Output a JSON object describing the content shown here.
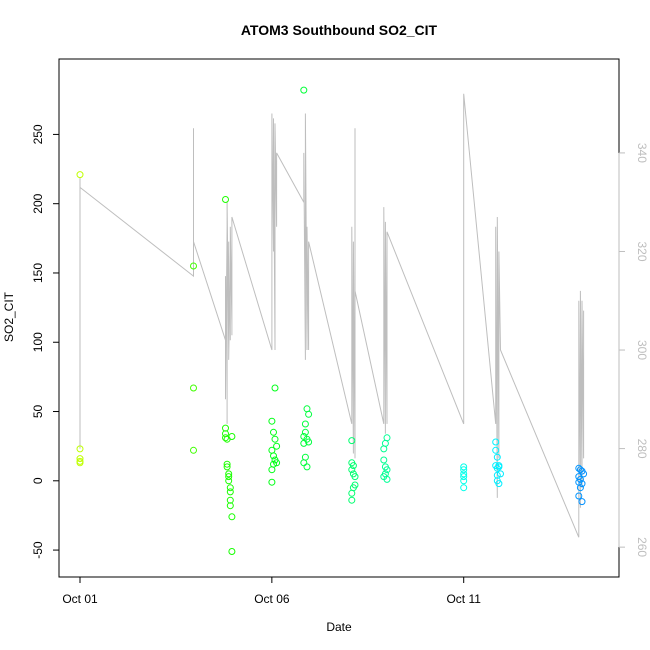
{
  "chart_data": {
    "type": "scatter",
    "title": "ATOM3 Southbound SO2_CIT",
    "xlabel": "Date",
    "ylabel": "SO2_CIT",
    "x_ticks": [
      "Oct 01",
      "Oct 06",
      "Oct 11"
    ],
    "xlim": [
      "2016-10-01T00:00",
      "2016-10-14T12:00"
    ],
    "ylim": [
      -55,
      290
    ],
    "y_ticks": [
      -50,
      0,
      50,
      100,
      150,
      200,
      250
    ],
    "y2lim": [
      258,
      355
    ],
    "y2_ticks": [
      260,
      280,
      300,
      320,
      340
    ],
    "grid": false,
    "series": [
      {
        "kind": "points",
        "color_scale": "rainbow-by-time",
        "points": [
          [
            "2016-10-01T00:00",
            221
          ],
          [
            "2016-10-01T00:00",
            23
          ],
          [
            "2016-10-01T00:00",
            16
          ],
          [
            "2016-10-01T00:00",
            14
          ],
          [
            "2016-10-01T00:00",
            13
          ],
          [
            "2016-10-03T23:00",
            155
          ],
          [
            "2016-10-03T23:00",
            67
          ],
          [
            "2016-10-03T23:00",
            22
          ],
          [
            "2016-10-04T19:00",
            203
          ],
          [
            "2016-10-04T19:00",
            38
          ],
          [
            "2016-10-04T19:00",
            34
          ],
          [
            "2016-10-04T19:00",
            31
          ],
          [
            "2016-10-04T20:00",
            30
          ],
          [
            "2016-10-04T20:00",
            12
          ],
          [
            "2016-10-04T20:00",
            10
          ],
          [
            "2016-10-04T21:00",
            5
          ],
          [
            "2016-10-04T21:00",
            3
          ],
          [
            "2016-10-04T21:00",
            0
          ],
          [
            "2016-10-04T22:00",
            -5
          ],
          [
            "2016-10-04T22:00",
            -8
          ],
          [
            "2016-10-04T22:00",
            -14
          ],
          [
            "2016-10-04T22:00",
            -18
          ],
          [
            "2016-10-04T23:00",
            -26
          ],
          [
            "2016-10-04T23:00",
            -51
          ],
          [
            "2016-10-04T23:00",
            32
          ],
          [
            "2016-10-06T00:00",
            43
          ],
          [
            "2016-10-06T01:00",
            35
          ],
          [
            "2016-10-06T02:00",
            30
          ],
          [
            "2016-10-06T00:00",
            22
          ],
          [
            "2016-10-06T01:00",
            18
          ],
          [
            "2016-10-06T02:00",
            15
          ],
          [
            "2016-10-06T03:00",
            13
          ],
          [
            "2016-10-06T01:00",
            12
          ],
          [
            "2016-10-06T00:00",
            8
          ],
          [
            "2016-10-06T00:00",
            -1
          ],
          [
            "2016-10-06T02:00",
            67
          ],
          [
            "2016-10-06T03:00",
            25
          ],
          [
            "2016-10-06T20:00",
            282
          ],
          [
            "2016-10-06T22:00",
            52
          ],
          [
            "2016-10-06T23:00",
            48
          ],
          [
            "2016-10-06T21:00",
            41
          ],
          [
            "2016-10-06T21:00",
            35
          ],
          [
            "2016-10-06T20:00",
            32
          ],
          [
            "2016-10-06T22:00",
            30
          ],
          [
            "2016-10-06T23:00",
            28
          ],
          [
            "2016-10-06T20:00",
            27
          ],
          [
            "2016-10-06T21:00",
            17
          ],
          [
            "2016-10-06T20:00",
            13
          ],
          [
            "2016-10-06T22:00",
            10
          ],
          [
            "2016-10-08T02:00",
            29
          ],
          [
            "2016-10-08T02:00",
            13
          ],
          [
            "2016-10-08T03:00",
            11
          ],
          [
            "2016-10-08T02:00",
            8
          ],
          [
            "2016-10-08T03:00",
            5
          ],
          [
            "2016-10-08T04:00",
            3
          ],
          [
            "2016-10-08T04:00",
            -3
          ],
          [
            "2016-10-08T03:00",
            -5
          ],
          [
            "2016-10-08T02:00",
            -9
          ],
          [
            "2016-10-08T02:00",
            -14
          ],
          [
            "2016-10-09T00:00",
            31
          ],
          [
            "2016-10-08T23:00",
            27
          ],
          [
            "2016-10-08T22:00",
            23
          ],
          [
            "2016-10-08T22:00",
            15
          ],
          [
            "2016-10-08T23:00",
            10
          ],
          [
            "2016-10-09T00:00",
            8
          ],
          [
            "2016-10-08T23:00",
            5
          ],
          [
            "2016-10-08T22:00",
            3
          ],
          [
            "2016-10-09T00:00",
            1
          ],
          [
            "2016-10-11T00:00",
            10
          ],
          [
            "2016-10-11T00:00",
            8
          ],
          [
            "2016-10-11T00:00",
            5
          ],
          [
            "2016-10-11T00:00",
            3
          ],
          [
            "2016-10-11T00:00",
            0
          ],
          [
            "2016-10-11T00:00",
            -5
          ],
          [
            "2016-10-11T20:00",
            28
          ],
          [
            "2016-10-11T20:00",
            22
          ],
          [
            "2016-10-11T21:00",
            17
          ],
          [
            "2016-10-11T20:00",
            11
          ],
          [
            "2016-10-11T21:00",
            9
          ],
          [
            "2016-10-11T22:00",
            11
          ],
          [
            "2016-10-11T22:00",
            10
          ],
          [
            "2016-10-11T23:00",
            5
          ],
          [
            "2016-10-11T21:00",
            4
          ],
          [
            "2016-10-11T21:00",
            0
          ],
          [
            "2016-10-11T22:00",
            -2
          ],
          [
            "2016-10-14T00:00",
            9
          ],
          [
            "2016-10-14T01:00",
            8
          ],
          [
            "2016-10-14T02:00",
            7
          ],
          [
            "2016-10-14T03:00",
            5
          ],
          [
            "2016-10-14T00:00",
            3
          ],
          [
            "2016-10-14T01:00",
            1
          ],
          [
            "2016-10-14T00:00",
            -1
          ],
          [
            "2016-10-14T02:00",
            -2
          ],
          [
            "2016-10-14T01:00",
            -5
          ],
          [
            "2016-10-14T00:00",
            -11
          ],
          [
            "2016-10-14T02:00",
            -15
          ]
        ]
      },
      {
        "kind": "line",
        "axis": "right",
        "color": "#bebebe",
        "points": [
          [
            "2016-10-01T00:00",
            280
          ],
          [
            "2016-10-01T00:00",
            335
          ],
          [
            "2016-10-01T00:00",
            330
          ],
          [
            "2016-10-01T00:00",
            333
          ],
          [
            "2016-10-03T23:00",
            315
          ],
          [
            "2016-10-03T23:00",
            345
          ],
          [
            "2016-10-03T23:00",
            322
          ],
          [
            "2016-10-04T19:00",
            302
          ],
          [
            "2016-10-04T19:00",
            315
          ],
          [
            "2016-10-04T19:00",
            290
          ],
          [
            "2016-10-04T20:00",
            325
          ],
          [
            "2016-10-04T20:00",
            285
          ],
          [
            "2016-10-04T20:00",
            330
          ],
          [
            "2016-10-04T21:00",
            300
          ],
          [
            "2016-10-04T21:00",
            322
          ],
          [
            "2016-10-04T21:00",
            298
          ],
          [
            "2016-10-04T22:00",
            320
          ],
          [
            "2016-10-04T22:00",
            302
          ],
          [
            "2016-10-04T22:00",
            325
          ],
          [
            "2016-10-04T23:00",
            305
          ],
          [
            "2016-10-04T23:00",
            303
          ],
          [
            "2016-10-04T23:00",
            327
          ],
          [
            "2016-10-06T00:00",
            300
          ],
          [
            "2016-10-06T00:00",
            348
          ],
          [
            "2016-10-06T01:00",
            320
          ],
          [
            "2016-10-06T01:00",
            347
          ],
          [
            "2016-10-06T02:00",
            300
          ],
          [
            "2016-10-06T02:00",
            346
          ],
          [
            "2016-10-06T03:00",
            325
          ],
          [
            "2016-10-06T03:00",
            340
          ],
          [
            "2016-10-06T20:00",
            330
          ],
          [
            "2016-10-06T20:00",
            340
          ],
          [
            "2016-10-06T21:00",
            298
          ],
          [
            "2016-10-06T21:00",
            348
          ],
          [
            "2016-10-06T22:00",
            300
          ],
          [
            "2016-10-06T22:00",
            325
          ],
          [
            "2016-10-06T23:00",
            300
          ],
          [
            "2016-10-06T23:00",
            322
          ],
          [
            "2016-10-08T02:00",
            285
          ],
          [
            "2016-10-08T02:00",
            325
          ],
          [
            "2016-10-08T03:00",
            279
          ],
          [
            "2016-10-08T03:00",
            322
          ],
          [
            "2016-10-08T04:00",
            278
          ],
          [
            "2016-10-08T04:00",
            345
          ],
          [
            "2016-10-08T04:00",
            312
          ],
          [
            "2016-10-08T22:00",
            285
          ],
          [
            "2016-10-08T22:00",
            329
          ],
          [
            "2016-10-08T23:00",
            283
          ],
          [
            "2016-10-08T23:00",
            326
          ],
          [
            "2016-10-09T00:00",
            285
          ],
          [
            "2016-10-09T00:00",
            324
          ],
          [
            "2016-10-11T00:00",
            285
          ],
          [
            "2016-10-11T00:00",
            330
          ],
          [
            "2016-10-11T00:00",
            300
          ],
          [
            "2016-10-11T00:00",
            336
          ],
          [
            "2016-10-11T00:00",
            290
          ],
          [
            "2016-10-11T00:00",
            352
          ],
          [
            "2016-10-11T20:00",
            285
          ],
          [
            "2016-10-11T20:00",
            325
          ],
          [
            "2016-10-11T21:00",
            270
          ],
          [
            "2016-10-11T21:00",
            327
          ],
          [
            "2016-10-11T22:00",
            278
          ],
          [
            "2016-10-11T22:00",
            320
          ],
          [
            "2016-10-11T23:00",
            300
          ],
          [
            "2016-10-14T00:00",
            262
          ],
          [
            "2016-10-14T00:00",
            310
          ],
          [
            "2016-10-14T01:00",
            268
          ],
          [
            "2016-10-14T01:00",
            312
          ],
          [
            "2016-10-14T02:00",
            272
          ],
          [
            "2016-10-14T02:00",
            310
          ],
          [
            "2016-10-14T03:00",
            278
          ],
          [
            "2016-10-14T03:00",
            308
          ]
        ]
      }
    ]
  }
}
